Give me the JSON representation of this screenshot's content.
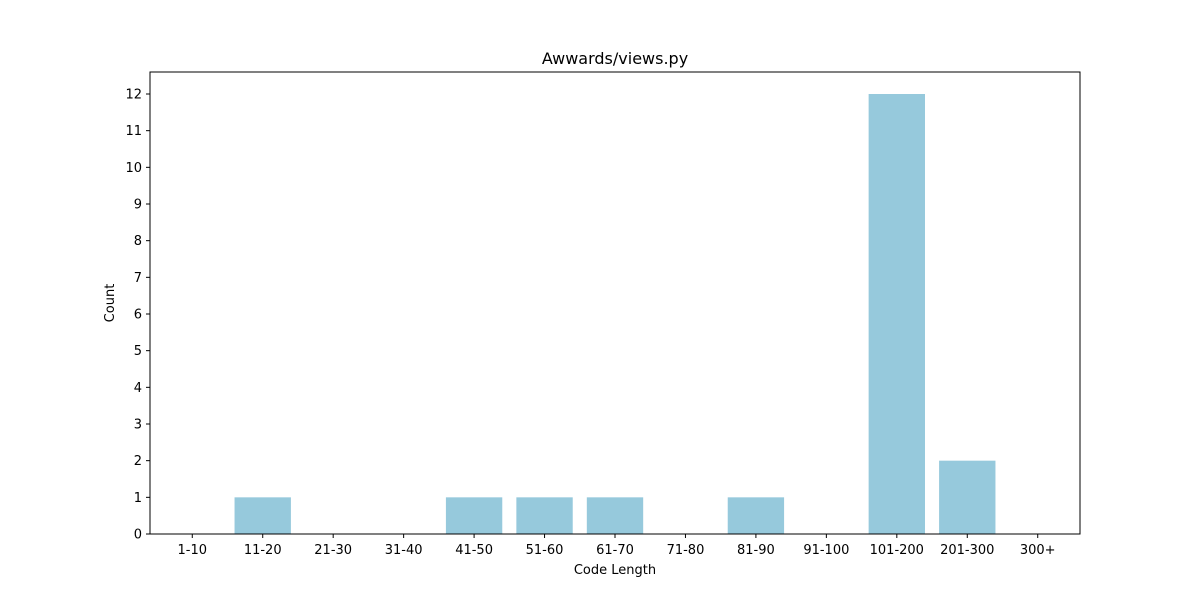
{
  "chart_data": {
    "type": "bar",
    "title": "Awwards/views.py",
    "xlabel": "Code Length",
    "ylabel": "Count",
    "categories": [
      "1-10",
      "11-20",
      "21-30",
      "31-40",
      "41-50",
      "51-60",
      "61-70",
      "71-80",
      "81-90",
      "91-100",
      "101-200",
      "201-300",
      "300+"
    ],
    "values": [
      0,
      1,
      0,
      0,
      1,
      1,
      1,
      0,
      1,
      0,
      12,
      2,
      0
    ],
    "ylim": [
      0,
      12.6
    ],
    "yticks": [
      0,
      1,
      2,
      3,
      4,
      5,
      6,
      7,
      8,
      9,
      10,
      11,
      12
    ],
    "grid": false,
    "bar_color": "#96c9dc"
  }
}
